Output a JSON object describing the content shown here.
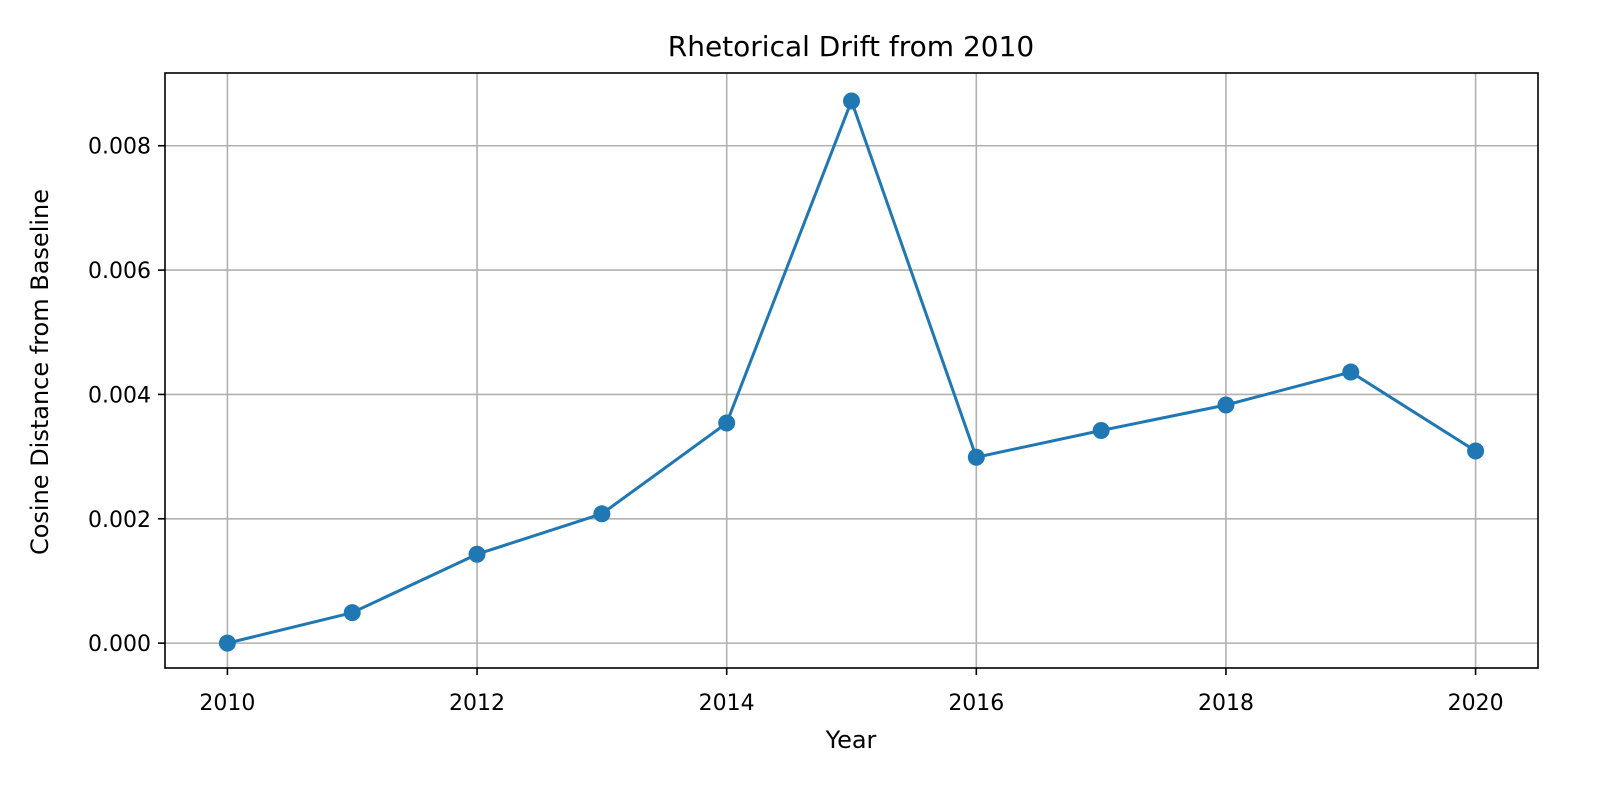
{
  "chart_data": {
    "type": "line",
    "title": "Rhetorical Drift from 2010",
    "xlabel": "Year",
    "ylabel": "Cosine Distance from Baseline",
    "x": [
      2010,
      2011,
      2012,
      2013,
      2014,
      2015,
      2016,
      2017,
      2018,
      2019,
      2020
    ],
    "series": [
      {
        "values": [
          0.0,
          0.00049,
          0.00143,
          0.00208,
          0.00354,
          0.00872,
          0.00299,
          0.00342,
          0.00383,
          0.00436,
          0.00309
        ],
        "color": "#1f77b4",
        "marker": "circle"
      }
    ],
    "xlim": [
      2009.5,
      2020.5
    ],
    "ylim": [
      -0.0004,
      0.00917
    ],
    "xticks": [
      2010,
      2012,
      2014,
      2016,
      2018,
      2020
    ],
    "xtick_labels": [
      "2010",
      "2012",
      "2014",
      "2016",
      "2018",
      "2020"
    ],
    "yticks": [
      0.0,
      0.002,
      0.004,
      0.006,
      0.008
    ],
    "ytick_labels": [
      "0.000",
      "0.002",
      "0.004",
      "0.006",
      "0.008"
    ],
    "grid": true,
    "legend": "none"
  }
}
